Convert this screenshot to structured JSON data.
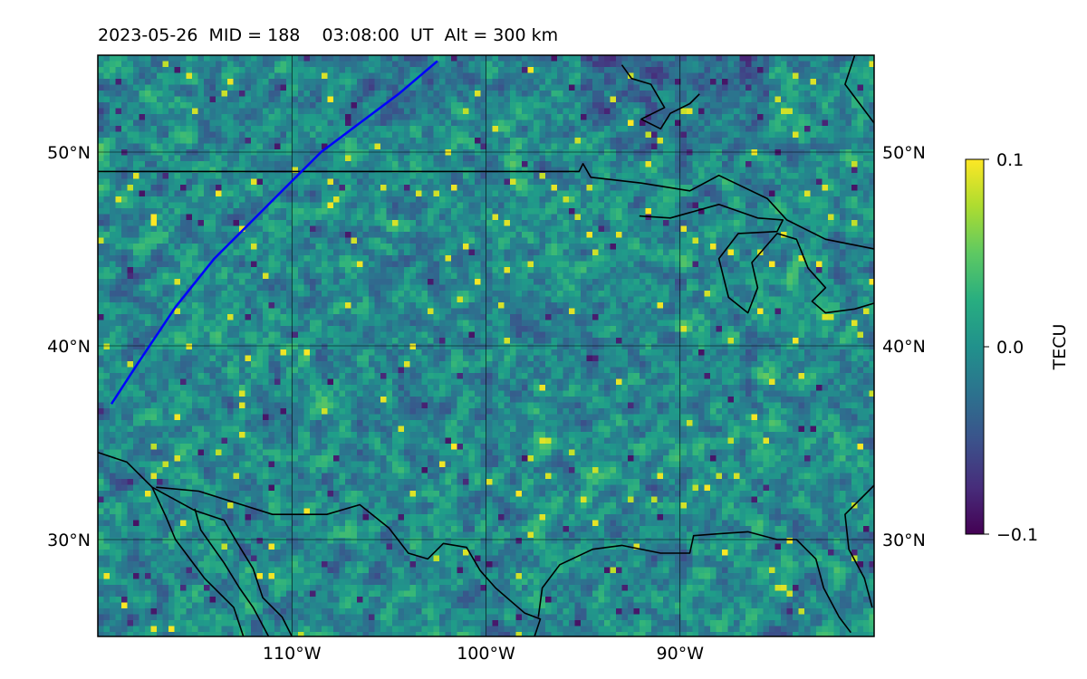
{
  "title": "2023-05-26  MID = 188    03:08:00  UT  Alt = 300 km",
  "chart_data": {
    "type": "heatmap",
    "title": "2023-05-26  MID = 188    03:08:00  UT  Alt = 300 km",
    "x_range": [
      -120,
      -80
    ],
    "y_range": [
      25,
      55
    ],
    "x_ticks": [
      {
        "value": -110,
        "label": "110°W"
      },
      {
        "value": -100,
        "label": "100°W"
      },
      {
        "value": -90,
        "label": "90°W"
      }
    ],
    "y_ticks": [
      {
        "value": 30,
        "label": "30°N"
      },
      {
        "value": 40,
        "label": "40°N"
      },
      {
        "value": 50,
        "label": "50°N"
      }
    ],
    "grid": true,
    "colorbar": {
      "label": "TECU",
      "min": -0.1,
      "max": 0.1,
      "ticks": [
        {
          "value": 0.1,
          "label": "0.1"
        },
        {
          "value": 0.0,
          "label": "0.0"
        },
        {
          "value": -0.1,
          "label": "−0.1"
        }
      ],
      "colormap": "viridis"
    },
    "track": {
      "color": "#0000ff",
      "points": [
        [
          -119.3,
          37.0
        ],
        [
          -118.0,
          39.0
        ],
        [
          -116.0,
          42.0
        ],
        [
          -114.0,
          44.5
        ],
        [
          -112.0,
          46.5
        ],
        [
          -110.5,
          48.0
        ],
        [
          -108.5,
          50.0
        ],
        [
          -106.5,
          51.5
        ],
        [
          -104.5,
          53.0
        ],
        [
          -102.5,
          54.7
        ]
      ]
    },
    "coastlines": [
      [
        [
          -120,
          34.5
        ],
        [
          -118.5,
          34.0
        ],
        [
          -117.2,
          32.7
        ],
        [
          -115.0,
          31.5
        ],
        [
          -113.5,
          31.0
        ],
        [
          -112.8,
          29.8
        ],
        [
          -112.0,
          28.5
        ],
        [
          -111.5,
          27.0
        ],
        [
          -110.5,
          26.0
        ],
        [
          -110.0,
          25.0
        ]
      ],
      [
        [
          -117.2,
          32.7
        ],
        [
          -116.5,
          31.2
        ],
        [
          -116.0,
          30.0
        ],
        [
          -114.5,
          28.0
        ],
        [
          -113.0,
          26.5
        ],
        [
          -112.5,
          25.0
        ]
      ],
      [
        [
          -115.0,
          31.6
        ],
        [
          -114.7,
          30.5
        ],
        [
          -113.5,
          28.8
        ],
        [
          -112.7,
          27.5
        ],
        [
          -112.0,
          26.5
        ],
        [
          -111.2,
          25.0
        ]
      ],
      [
        [
          -117.0,
          32.7
        ],
        [
          -114.8,
          32.5
        ],
        [
          -111.0,
          31.3
        ],
        [
          -108.2,
          31.3
        ],
        [
          -106.5,
          31.8
        ],
        [
          -105.0,
          30.6
        ],
        [
          -104.0,
          29.3
        ],
        [
          -103.0,
          29.0
        ],
        [
          -102.2,
          29.8
        ],
        [
          -101.0,
          29.6
        ],
        [
          -100.3,
          28.4
        ],
        [
          -99.5,
          27.5
        ],
        [
          -98.0,
          26.2
        ],
        [
          -97.2,
          25.9
        ],
        [
          -97.5,
          25.0
        ]
      ],
      [
        [
          -97.3,
          26.0
        ],
        [
          -97.1,
          27.5
        ],
        [
          -96.2,
          28.7
        ],
        [
          -94.5,
          29.5
        ],
        [
          -93.0,
          29.7
        ],
        [
          -91.0,
          29.3
        ],
        [
          -89.5,
          29.3
        ],
        [
          -89.3,
          30.2
        ],
        [
          -88.0,
          30.3
        ],
        [
          -86.5,
          30.4
        ],
        [
          -85.0,
          30.0
        ],
        [
          -84.0,
          30.0
        ],
        [
          -83.0,
          29.0
        ],
        [
          -82.6,
          27.5
        ],
        [
          -81.8,
          26.0
        ],
        [
          -81.2,
          25.2
        ]
      ],
      [
        [
          -80.0,
          32.8
        ],
        [
          -81.5,
          31.3
        ],
        [
          -81.3,
          29.5
        ],
        [
          -80.5,
          28.0
        ],
        [
          -80.1,
          26.5
        ]
      ],
      [
        [
          -120,
          49.0
        ],
        [
          -95.2,
          49.0
        ],
        [
          -95.0,
          49.4
        ],
        [
          -94.6,
          48.7
        ],
        [
          -92.0,
          48.4
        ],
        [
          -89.5,
          48.0
        ],
        [
          -88.0,
          48.8
        ],
        [
          -85.5,
          47.6
        ],
        [
          -84.5,
          46.5
        ],
        [
          -82.5,
          45.5
        ],
        [
          -80.0,
          45.0
        ]
      ],
      [
        [
          -92.1,
          46.7
        ],
        [
          -90.5,
          46.6
        ],
        [
          -88.0,
          47.3
        ],
        [
          -86.0,
          46.6
        ],
        [
          -84.7,
          46.5
        ],
        [
          -85.0,
          45.9
        ],
        [
          -87.0,
          45.8
        ],
        [
          -88.0,
          44.5
        ],
        [
          -87.5,
          42.5
        ],
        [
          -86.5,
          41.7
        ],
        [
          -86.0,
          43.0
        ],
        [
          -86.3,
          44.3
        ],
        [
          -85.0,
          45.8
        ],
        [
          -84.0,
          45.5
        ],
        [
          -83.4,
          44.0
        ],
        [
          -82.5,
          43.0
        ],
        [
          -83.2,
          42.3
        ],
        [
          -82.5,
          41.7
        ],
        [
          -81.0,
          41.9
        ],
        [
          -80.0,
          42.2
        ]
      ],
      [
        [
          -93.0,
          54.5
        ],
        [
          -92.5,
          53.8
        ],
        [
          -91.5,
          53.5
        ],
        [
          -90.8,
          52.3
        ],
        [
          -92.0,
          51.7
        ],
        [
          -91.0,
          51.2
        ],
        [
          -90.5,
          52.0
        ],
        [
          -89.5,
          52.5
        ],
        [
          -89.0,
          53.0
        ]
      ],
      [
        [
          -81.0,
          55.0
        ],
        [
          -81.5,
          53.5
        ],
        [
          -80.0,
          51.5
        ]
      ]
    ]
  }
}
